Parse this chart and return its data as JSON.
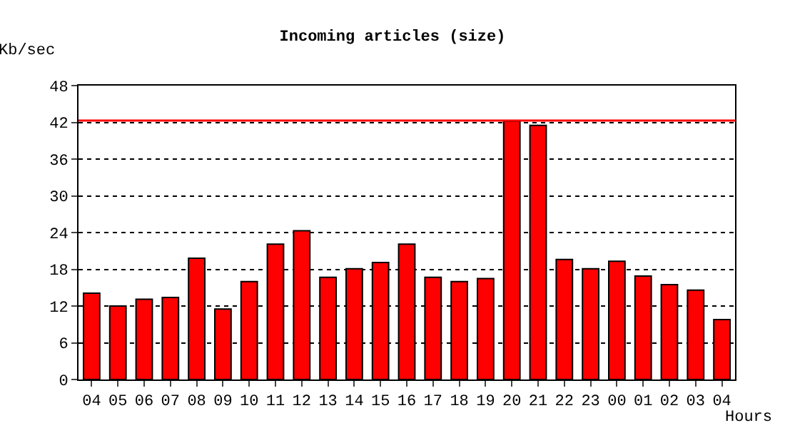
{
  "chart_data": {
    "type": "bar",
    "title": "Incoming articles (size)",
    "xlabel": "Hours",
    "ylabel": "Kb/sec",
    "categories": [
      "04",
      "05",
      "06",
      "07",
      "08",
      "09",
      "10",
      "11",
      "12",
      "13",
      "14",
      "15",
      "16",
      "17",
      "18",
      "19",
      "20",
      "21",
      "22",
      "23",
      "00",
      "01",
      "02",
      "03",
      "04"
    ],
    "values": [
      14.1,
      12.0,
      13.1,
      13.4,
      19.8,
      11.5,
      16.0,
      22.1,
      24.3,
      16.7,
      18.1,
      19.1,
      22.1,
      16.7,
      16.0,
      16.5,
      42.2,
      41.5,
      19.6,
      18.1,
      19.3,
      16.9,
      15.5,
      14.6,
      9.8
    ],
    "color": "#ff0000",
    "ylim": [
      0,
      48
    ],
    "yticks": [
      0,
      6,
      12,
      18,
      24,
      30,
      36,
      42,
      48
    ],
    "grid": "y",
    "ref_lines": [
      {
        "axis": "y",
        "value": 42.3,
        "color": "#ff0000"
      }
    ]
  }
}
